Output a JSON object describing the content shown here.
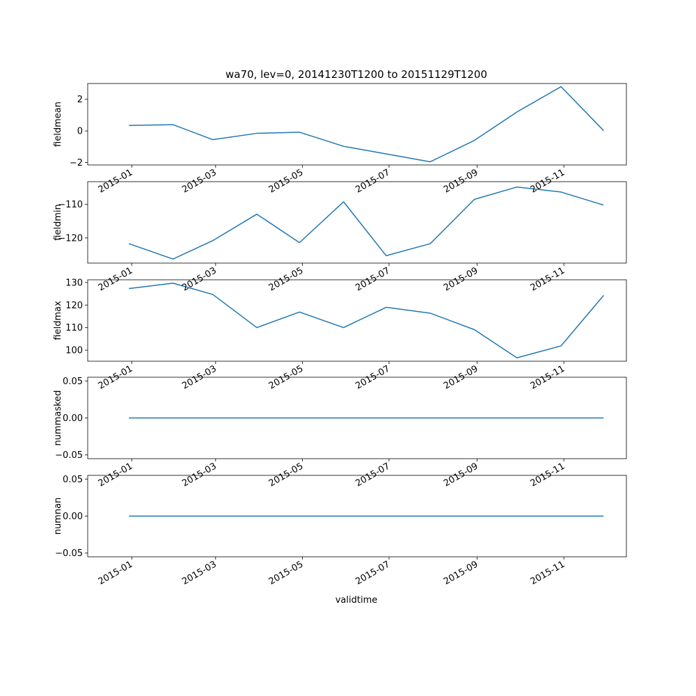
{
  "figure": {
    "title": "wa70, lev=0, 20141230T1200 to 20151129T1200",
    "xlabel": "validtime",
    "line_color": "#1f77b4"
  },
  "chart_data": [
    {
      "type": "line",
      "ylabel": "fieldmean",
      "x": [
        "2014-12-30",
        "2015-01-30",
        "2015-02-27",
        "2015-03-30",
        "2015-04-29",
        "2015-05-30",
        "2015-06-29",
        "2015-07-30",
        "2015-08-30",
        "2015-09-29",
        "2015-10-30",
        "2015-11-29"
      ],
      "values": [
        0.35,
        0.4,
        -0.55,
        -0.15,
        -0.08,
        -0.97,
        -1.45,
        -1.95,
        -0.6,
        1.2,
        2.8,
        0.02
      ],
      "xlim": [
        "2014-12-01",
        "2015-12-15"
      ],
      "ylim": [
        -2.15,
        3.0
      ],
      "yticks": [
        -2,
        0,
        2
      ],
      "ytick_labels": [
        "−2",
        "0",
        "2"
      ]
    },
    {
      "type": "line",
      "ylabel": "fieldmin",
      "x": [
        "2014-12-30",
        "2015-01-30",
        "2015-02-27",
        "2015-03-30",
        "2015-04-29",
        "2015-05-30",
        "2015-06-29",
        "2015-07-30",
        "2015-08-30",
        "2015-09-29",
        "2015-10-30",
        "2015-11-29"
      ],
      "values": [
        -121.7,
        -126.3,
        -120.8,
        -112.9,
        -121.4,
        -109.2,
        -125.3,
        -121.7,
        -108.5,
        -104.8,
        -106.3,
        -110.2
      ],
      "xlim": [
        "2014-12-01",
        "2015-12-15"
      ],
      "ylim": [
        -127.5,
        -103.2
      ],
      "yticks": [
        -120,
        -110
      ],
      "ytick_labels": [
        "−120",
        "−110"
      ]
    },
    {
      "type": "line",
      "ylabel": "fieldmax",
      "x": [
        "2014-12-30",
        "2015-01-30",
        "2015-02-27",
        "2015-03-30",
        "2015-04-29",
        "2015-05-30",
        "2015-06-29",
        "2015-07-30",
        "2015-08-30",
        "2015-09-29",
        "2015-10-30",
        "2015-11-29"
      ],
      "values": [
        127.3,
        129.7,
        124.7,
        110.0,
        116.9,
        110.0,
        119.0,
        116.4,
        109.1,
        96.6,
        101.9,
        124.3
      ],
      "xlim": [
        "2014-12-01",
        "2015-12-15"
      ],
      "ylim": [
        95.1,
        131.2
      ],
      "yticks": [
        100,
        110,
        120,
        130
      ],
      "ytick_labels": [
        "100",
        "110",
        "120",
        "130"
      ]
    },
    {
      "type": "line",
      "ylabel": "nummasked",
      "x": [
        "2014-12-30",
        "2015-01-30",
        "2015-02-27",
        "2015-03-30",
        "2015-04-29",
        "2015-05-30",
        "2015-06-29",
        "2015-07-30",
        "2015-08-30",
        "2015-09-29",
        "2015-10-30",
        "2015-11-29"
      ],
      "values": [
        0,
        0,
        0,
        0,
        0,
        0,
        0,
        0,
        0,
        0,
        0,
        0
      ],
      "xlim": [
        "2014-12-01",
        "2015-12-15"
      ],
      "ylim": [
        -0.055,
        0.055
      ],
      "yticks": [
        -0.05,
        0.0,
        0.05
      ],
      "ytick_labels": [
        "−0.05",
        "0.00",
        "0.05"
      ]
    },
    {
      "type": "line",
      "ylabel": "numnan",
      "x": [
        "2014-12-30",
        "2015-01-30",
        "2015-02-27",
        "2015-03-30",
        "2015-04-29",
        "2015-05-30",
        "2015-06-29",
        "2015-07-30",
        "2015-08-30",
        "2015-09-29",
        "2015-10-30",
        "2015-11-29"
      ],
      "values": [
        0,
        0,
        0,
        0,
        0,
        0,
        0,
        0,
        0,
        0,
        0,
        0
      ],
      "xlim": [
        "2014-12-01",
        "2015-12-15"
      ],
      "ylim": [
        -0.055,
        0.055
      ],
      "yticks": [
        -0.05,
        0.0,
        0.05
      ],
      "ytick_labels": [
        "−0.05",
        "0.00",
        "0.05"
      ]
    }
  ],
  "xticks": [
    "2015-01-01",
    "2015-03-01",
    "2015-05-01",
    "2015-07-01",
    "2015-09-01",
    "2015-11-01"
  ],
  "xtick_labels": [
    "2015-01",
    "2015-03",
    "2015-05",
    "2015-07",
    "2015-09",
    "2015-11"
  ]
}
